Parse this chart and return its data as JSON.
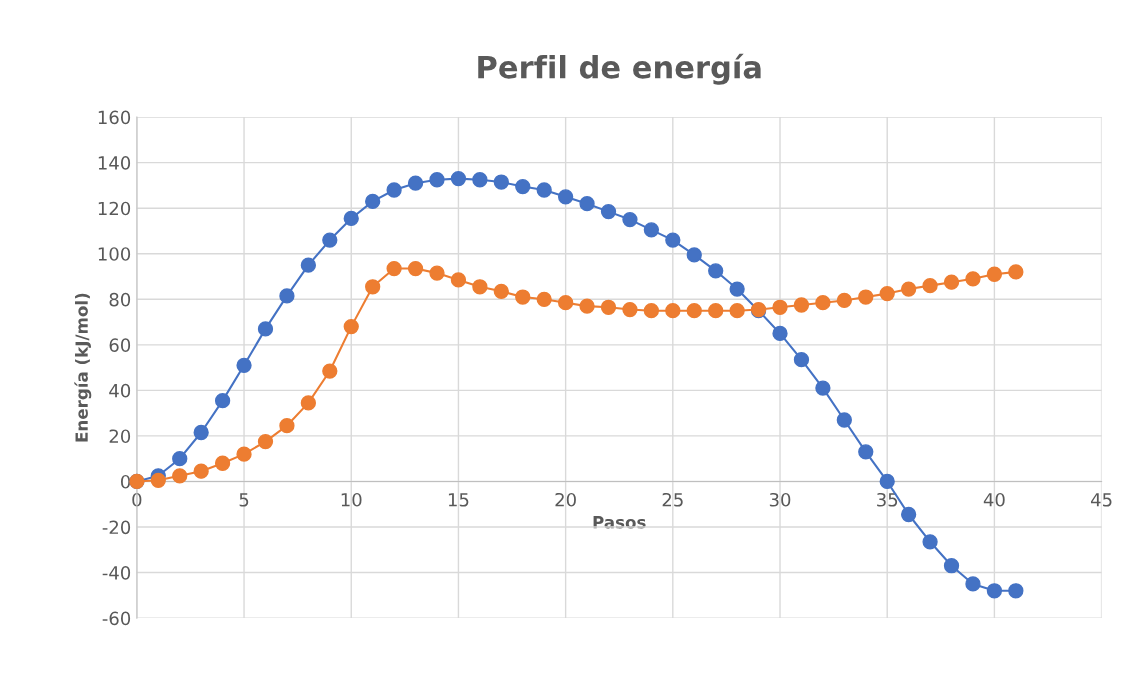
{
  "chart_data": {
    "type": "line",
    "title": "Perfil de energía",
    "xlabel": "Pasos",
    "ylabel": "Energía (kJ/mol)",
    "x": [
      0,
      1,
      2,
      3,
      4,
      5,
      6,
      7,
      8,
      9,
      10,
      11,
      12,
      13,
      14,
      15,
      16,
      17,
      18,
      19,
      20,
      21,
      22,
      23,
      24,
      25,
      26,
      27,
      28,
      29,
      30,
      31,
      32,
      33,
      34,
      35,
      36,
      37,
      38,
      39,
      40,
      41
    ],
    "series": [
      {
        "color": "#4472c4",
        "values": [
          0,
          2.5,
          10,
          21.5,
          35.5,
          51,
          67,
          81.5,
          95,
          106,
          115.5,
          123,
          128,
          131,
          132.5,
          133,
          132.5,
          131.5,
          129.5,
          128,
          125,
          122,
          118.5,
          115,
          110.5,
          106,
          99.5,
          92.5,
          84.5,
          75,
          65,
          53.5,
          41,
          27,
          13,
          0,
          -14.5,
          -26.5,
          -37,
          -45,
          -48,
          -48
        ]
      },
      {
        "color": "#ed7d31",
        "values": [
          0,
          0.5,
          2.5,
          4.5,
          8,
          12,
          17.5,
          24.5,
          34.5,
          48.5,
          68,
          85.5,
          93.5,
          93.5,
          91.5,
          88.5,
          85.5,
          83.5,
          81,
          80,
          78.5,
          77,
          76.5,
          75.5,
          75,
          75,
          75,
          75,
          75,
          75.5,
          76.5,
          77.5,
          78.5,
          79.5,
          81,
          82.5,
          84.5,
          86,
          87.5,
          89,
          91,
          92
        ]
      }
    ],
    "xlim": [
      0,
      45
    ],
    "xticks": [
      0,
      5,
      10,
      15,
      20,
      25,
      30,
      35,
      40,
      45
    ],
    "ylim": [
      -60,
      160
    ],
    "yticks": [
      -60,
      -40,
      -20,
      0,
      20,
      40,
      60,
      80,
      100,
      120,
      140,
      160
    ],
    "grid": true,
    "marker": "circle",
    "line_style": "solid"
  }
}
